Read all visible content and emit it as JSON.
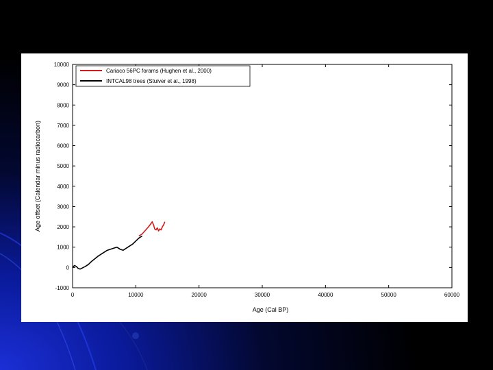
{
  "chart_data": {
    "type": "line",
    "title": "",
    "xlabel": "Age (Cal BP)",
    "ylabel": "Age offset (Calendar minus radiocarbon)",
    "xlim": [
      0,
      60000
    ],
    "ylim": [
      -1000,
      10000
    ],
    "xticks": [
      "0",
      "10000",
      "20000",
      "30000",
      "40000",
      "50000",
      "60000"
    ],
    "yticks": [
      "-1000",
      "0",
      "1000",
      "2000",
      "3000",
      "4000",
      "5000",
      "6000",
      "7000",
      "8000",
      "9000",
      "10000"
    ],
    "legend_position": "top-left",
    "grid": false,
    "series": [
      {
        "name": "Cariaco 56PC forams (Hughen et al., 2000)",
        "color": "#d21a1a",
        "x": [
          10500,
          11000,
          11500,
          12000,
          12300,
          12600,
          12800,
          13000,
          13200,
          13400,
          13600,
          13800,
          14000,
          14200,
          14400,
          14600
        ],
        "y": [
          1550,
          1650,
          1820,
          2000,
          2120,
          2250,
          2100,
          1900,
          1850,
          1950,
          1800,
          1900,
          1850,
          2000,
          2100,
          2250
        ]
      },
      {
        "name": "INTCAL98 trees (Stuiver et al., 1998)",
        "color": "#000000",
        "x": [
          0,
          300,
          600,
          900,
          1200,
          1500,
          2000,
          2500,
          3000,
          3500,
          4000,
          4500,
          5000,
          5500,
          6000,
          6500,
          7000,
          7500,
          8000,
          8500,
          9000,
          9500,
          10000,
          10500,
          11000
        ],
        "y": [
          0,
          100,
          50,
          -50,
          -80,
          -30,
          50,
          150,
          300,
          420,
          550,
          650,
          750,
          850,
          900,
          950,
          1000,
          900,
          850,
          950,
          1050,
          1150,
          1300,
          1450,
          1550
        ]
      }
    ]
  }
}
